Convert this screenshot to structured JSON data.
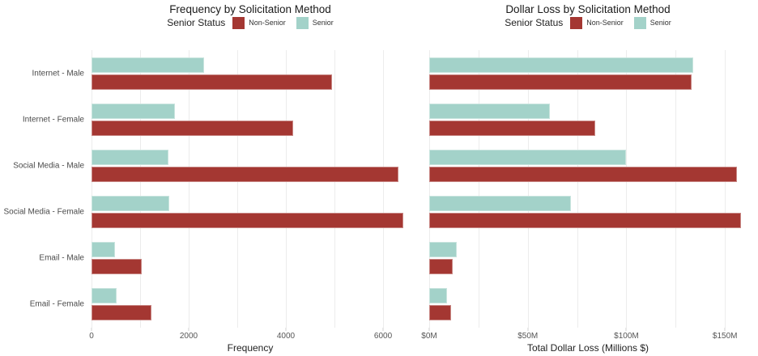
{
  "page": {
    "background": "#ffffff"
  },
  "colors": {
    "non_senior": "#a43732",
    "senior": "#a3d2c9",
    "gridline": "#ececec"
  },
  "chart_data": [
    {
      "type": "bar",
      "orientation": "horizontal",
      "title": "Frequency by Solicitation Method",
      "xlabel": "Frequency",
      "legend_title": "Senior Status",
      "legend_position": "top-center",
      "grid": true,
      "grid_step": 1000,
      "xlim": [
        0,
        6533
      ],
      "show_category_labels": true,
      "ticks": [
        {
          "value": 0,
          "label": "0"
        },
        {
          "value": 2000,
          "label": "2000"
        },
        {
          "value": 4000,
          "label": "4000"
        },
        {
          "value": 6000,
          "label": "6000"
        }
      ],
      "categories": [
        "Internet - Male",
        "Internet - Female",
        "Social Media - Male",
        "Social Media - Female",
        "Email - Male",
        "Email - Female"
      ],
      "series": [
        {
          "name": "Non-Senior",
          "color": "#a43732",
          "values": [
            4950,
            4150,
            6320,
            6420,
            1040,
            1240
          ]
        },
        {
          "name": "Senior",
          "color": "#a3d2c9",
          "values": [
            2320,
            1720,
            1580,
            1600,
            480,
            510
          ]
        }
      ]
    },
    {
      "type": "bar",
      "orientation": "horizontal",
      "title": "Dollar Loss by Solicitation Method",
      "xlabel": "Total Dollar Loss (Millions $)",
      "legend_title": "Senior Status",
      "legend_position": "top-center",
      "grid": true,
      "grid_step": 25,
      "xlim": [
        0,
        161
      ],
      "show_category_labels": false,
      "ticks": [
        {
          "value": 0,
          "label": "$0M"
        },
        {
          "value": 50,
          "label": "$50M"
        },
        {
          "value": 100,
          "label": "$100M"
        },
        {
          "value": 150,
          "label": "$150M"
        }
      ],
      "categories": [
        "Internet - Male",
        "Internet - Female",
        "Social Media - Male",
        "Social Media - Female",
        "Email - Male",
        "Email - Female"
      ],
      "series": [
        {
          "name": "Non-Senior",
          "color": "#a43732",
          "values": [
            133,
            84,
            156,
            158,
            12,
            11
          ]
        },
        {
          "name": "Senior",
          "color": "#a3d2c9",
          "values": [
            134,
            61,
            100,
            72,
            14,
            9
          ]
        }
      ]
    }
  ]
}
